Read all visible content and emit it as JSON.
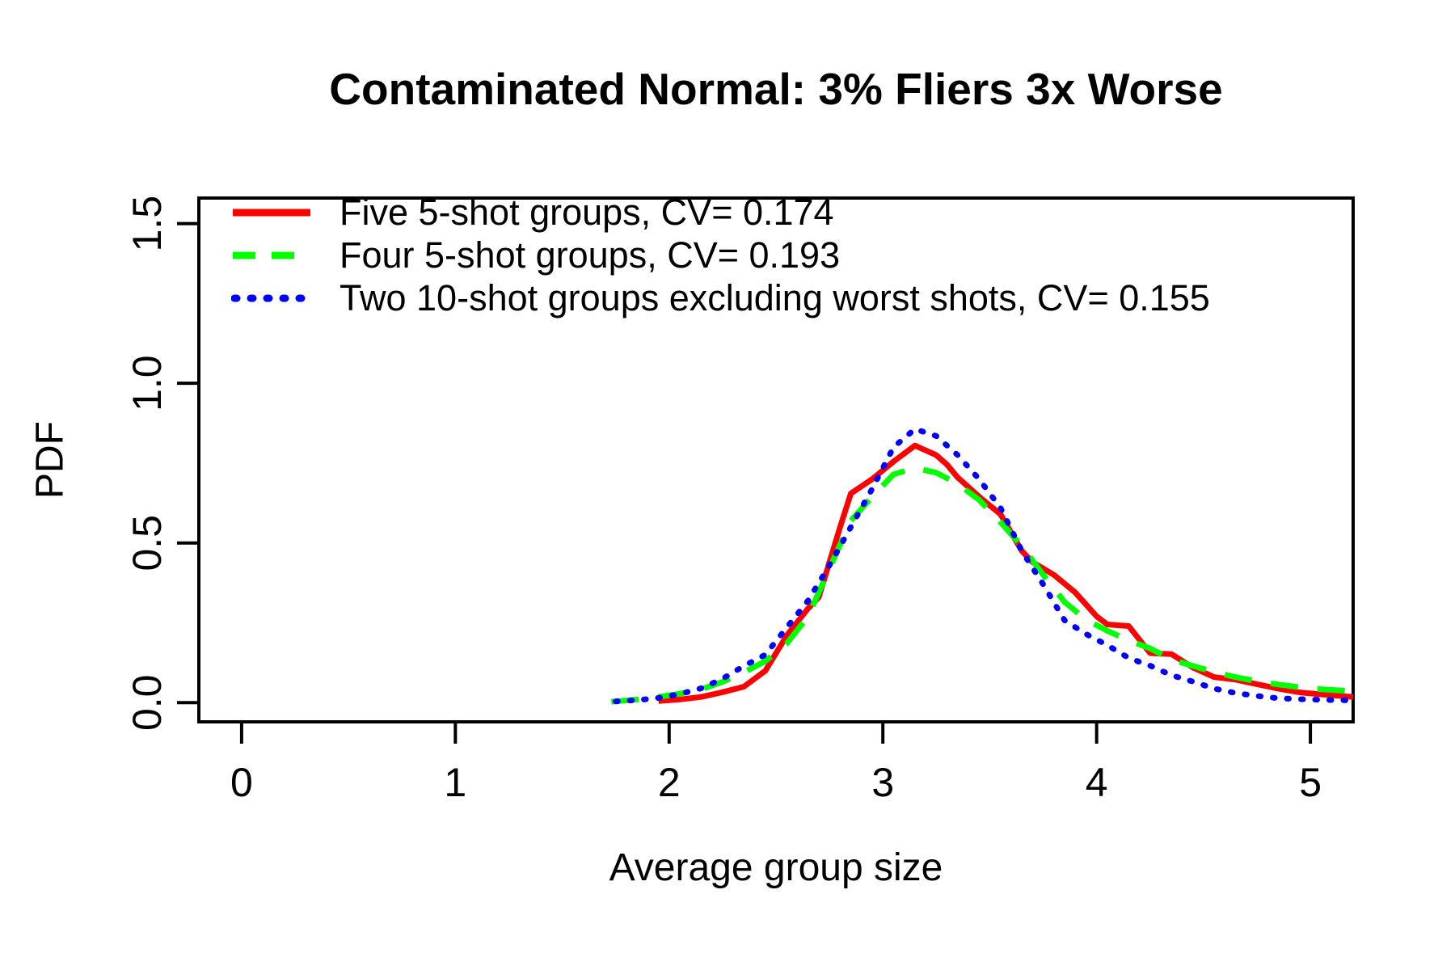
{
  "chart_data": {
    "type": "line",
    "title": "Contaminated Normal: 3% Fliers 3x Worse",
    "xlabel": "Average group size",
    "ylabel": "PDF",
    "xlim": [
      -0.2,
      5.2
    ],
    "ylim": [
      -0.06,
      1.58
    ],
    "x_ticks": [
      {
        "v": 0,
        "label": "0"
      },
      {
        "v": 1,
        "label": "1"
      },
      {
        "v": 2,
        "label": "2"
      },
      {
        "v": 3,
        "label": "3"
      },
      {
        "v": 4,
        "label": "4"
      },
      {
        "v": 5,
        "label": "5"
      }
    ],
    "y_ticks": [
      {
        "v": 0,
        "label": "0.0"
      },
      {
        "v": 0.5,
        "label": "0.5"
      },
      {
        "v": 1.0,
        "label": "1.0"
      },
      {
        "v": 1.5,
        "label": "1.5"
      }
    ],
    "grid": false,
    "legend_position": "top-left",
    "series": [
      {
        "label": "Five 5-shot groups, CV= 0.174",
        "cv": 0.174,
        "color": "#ff0000",
        "style": "solid",
        "points": [
          [
            1.95,
            0.005
          ],
          [
            2.05,
            0.01
          ],
          [
            2.15,
            0.018
          ],
          [
            2.25,
            0.033
          ],
          [
            2.35,
            0.05
          ],
          [
            2.45,
            0.1
          ],
          [
            2.55,
            0.21
          ],
          [
            2.65,
            0.295
          ],
          [
            2.7,
            0.33
          ],
          [
            2.8,
            0.55
          ],
          [
            2.85,
            0.655
          ],
          [
            2.95,
            0.7
          ],
          [
            3.05,
            0.755
          ],
          [
            3.15,
            0.805
          ],
          [
            3.25,
            0.775
          ],
          [
            3.3,
            0.745
          ],
          [
            3.35,
            0.705
          ],
          [
            3.45,
            0.645
          ],
          [
            3.55,
            0.59
          ],
          [
            3.65,
            0.475
          ],
          [
            3.7,
            0.44
          ],
          [
            3.8,
            0.4
          ],
          [
            3.9,
            0.345
          ],
          [
            4.0,
            0.27
          ],
          [
            4.05,
            0.245
          ],
          [
            4.15,
            0.24
          ],
          [
            4.25,
            0.155
          ],
          [
            4.35,
            0.152
          ],
          [
            4.45,
            0.11
          ],
          [
            4.55,
            0.08
          ],
          [
            4.65,
            0.072
          ],
          [
            4.75,
            0.058
          ],
          [
            4.85,
            0.044
          ],
          [
            4.95,
            0.032
          ],
          [
            5.05,
            0.026
          ],
          [
            5.2,
            0.018
          ]
        ]
      },
      {
        "label": "Four 5-shot groups, CV= 0.193",
        "cv": 0.193,
        "color": "#00ff00",
        "style": "dashed",
        "points": [
          [
            1.73,
            0.003
          ],
          [
            1.85,
            0.01
          ],
          [
            1.95,
            0.018
          ],
          [
            2.05,
            0.028
          ],
          [
            2.15,
            0.042
          ],
          [
            2.25,
            0.065
          ],
          [
            2.35,
            0.095
          ],
          [
            2.45,
            0.13
          ],
          [
            2.55,
            0.185
          ],
          [
            2.65,
            0.27
          ],
          [
            2.75,
            0.42
          ],
          [
            2.85,
            0.57
          ],
          [
            2.95,
            0.645
          ],
          [
            3.05,
            0.715
          ],
          [
            3.15,
            0.735
          ],
          [
            3.25,
            0.72
          ],
          [
            3.35,
            0.685
          ],
          [
            3.45,
            0.635
          ],
          [
            3.55,
            0.565
          ],
          [
            3.65,
            0.49
          ],
          [
            3.75,
            0.4
          ],
          [
            3.85,
            0.315
          ],
          [
            3.95,
            0.26
          ],
          [
            4.05,
            0.225
          ],
          [
            4.15,
            0.195
          ],
          [
            4.25,
            0.17
          ],
          [
            4.35,
            0.135
          ],
          [
            4.45,
            0.115
          ],
          [
            4.55,
            0.096
          ],
          [
            4.65,
            0.08
          ],
          [
            4.75,
            0.067
          ],
          [
            4.85,
            0.057
          ],
          [
            4.95,
            0.048
          ],
          [
            5.05,
            0.042
          ],
          [
            5.2,
            0.036
          ]
        ]
      },
      {
        "label": "Two 10-shot groups excluding worst shots, CV= 0.155",
        "cv": 0.155,
        "color": "#0000ff",
        "style": "dotted",
        "points": [
          [
            1.75,
            0.004
          ],
          [
            1.85,
            0.008
          ],
          [
            1.95,
            0.015
          ],
          [
            2.05,
            0.027
          ],
          [
            2.15,
            0.045
          ],
          [
            2.25,
            0.075
          ],
          [
            2.35,
            0.115
          ],
          [
            2.45,
            0.15
          ],
          [
            2.55,
            0.235
          ],
          [
            2.65,
            0.32
          ],
          [
            2.75,
            0.43
          ],
          [
            2.85,
            0.55
          ],
          [
            2.95,
            0.67
          ],
          [
            3.05,
            0.8
          ],
          [
            3.15,
            0.857
          ],
          [
            3.25,
            0.835
          ],
          [
            3.35,
            0.775
          ],
          [
            3.45,
            0.7
          ],
          [
            3.55,
            0.61
          ],
          [
            3.65,
            0.475
          ],
          [
            3.75,
            0.37
          ],
          [
            3.85,
            0.258
          ],
          [
            3.95,
            0.215
          ],
          [
            4.05,
            0.18
          ],
          [
            4.15,
            0.14
          ],
          [
            4.25,
            0.116
          ],
          [
            4.35,
            0.086
          ],
          [
            4.45,
            0.066
          ],
          [
            4.55,
            0.044
          ],
          [
            4.65,
            0.03
          ],
          [
            4.75,
            0.021
          ],
          [
            4.85,
            0.014
          ],
          [
            4.95,
            0.011
          ],
          [
            5.05,
            0.009
          ],
          [
            5.2,
            0.007
          ]
        ]
      }
    ]
  }
}
